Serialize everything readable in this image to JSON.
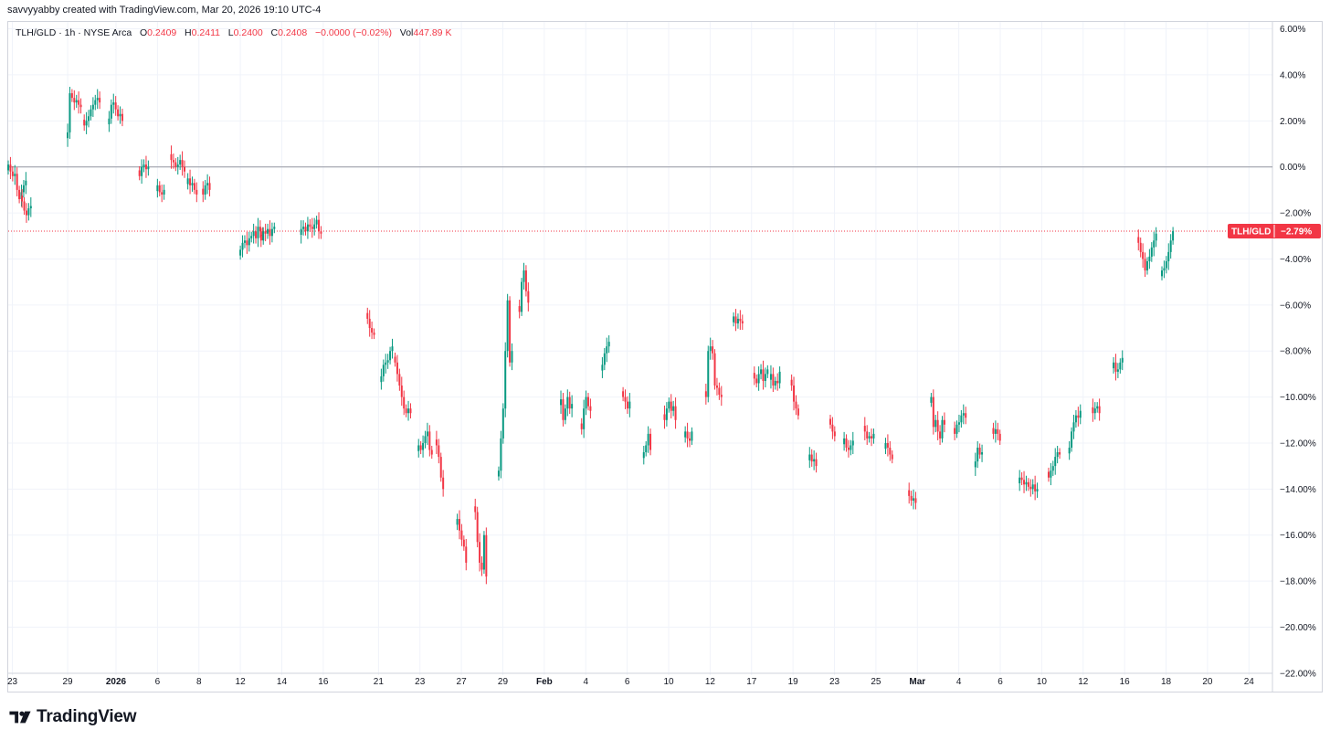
{
  "header": {
    "created": "savvyyabby created with TradingView.com, Mar 20, 2026 19:10 UTC-4"
  },
  "legend": {
    "symbol": "TLH/GLD · 1h · NYSE Arca",
    "open_label": "O",
    "open": "0.2409",
    "high_label": "H",
    "high": "0.2411",
    "low_label": "L",
    "low": "0.2400",
    "close_label": "C",
    "close": "0.2408",
    "change": "−0.0000 (−0.02%)",
    "vol_label": "Vol",
    "vol": "447.89 K"
  },
  "price_tag": {
    "symbol": "TLH/GLD",
    "value": "−2.79%"
  },
  "footer": {
    "brand": "TradingView"
  },
  "colors": {
    "up": "#089981",
    "down": "#f23645",
    "grid": "#f0f3fa",
    "zero_line": "#9598a1",
    "price_line": "#f23645"
  },
  "chart_data": {
    "type": "candlestick",
    "title": "TLH/GLD · 1h · NYSE Arca",
    "y_axis": {
      "unit": "percent",
      "range": [
        -22.8,
        6.3
      ],
      "ticks": [
        "6.00%",
        "4.00%",
        "2.00%",
        "0.00%",
        "−2.00%",
        "−4.00%",
        "−6.00%",
        "−8.00%",
        "−10.00%",
        "−12.00%",
        "−14.00%",
        "−16.00%",
        "−18.00%",
        "−20.00%",
        "−22.00%"
      ],
      "tick_values": [
        6,
        4,
        2,
        0,
        -2,
        -4,
        -6,
        -8,
        -10,
        -12,
        -14,
        -16,
        -18,
        -20,
        -22
      ]
    },
    "x_axis": {
      "labels": [
        "23",
        "29",
        "2026",
        "6",
        "8",
        "12",
        "14",
        "16",
        "21",
        "23",
        "27",
        "29",
        "Feb",
        "4",
        "6",
        "10",
        "12",
        "17",
        "19",
        "23",
        "25",
        "Mar",
        "4",
        "6",
        "10",
        "12",
        "16",
        "18",
        "20",
        "24"
      ],
      "label_index": [
        0.3,
        4.3,
        7.8,
        10.8,
        13.8,
        16.8,
        19.8,
        22.8,
        26.8,
        29.8,
        32.8,
        35.8,
        38.8,
        41.8,
        44.8,
        47.8,
        50.8,
        53.8,
        56.8,
        59.8,
        62.8,
        65.8,
        68.8,
        71.8,
        74.8,
        77.8,
        80.8,
        83.8,
        86.8,
        89.8
      ]
    },
    "reference_lines": [
      {
        "value": 0.0,
        "style": "solid"
      },
      {
        "value": -2.79,
        "style": "dotted"
      }
    ],
    "last_value": -2.79,
    "sessions": [
      {
        "start": 0.0,
        "values": [
          0.1,
          -0.2,
          -0.4,
          -0.3,
          -1.0,
          -1.4,
          -1.1,
          -0.8,
          -0.6
        ]
      },
      {
        "start": 1.0,
        "values": [
          -1.5,
          -1.9,
          -2.1,
          -1.8,
          -1.7
        ]
      },
      {
        "start": 4.3,
        "values": [
          1.5,
          3.2,
          3.0,
          2.8,
          2.9,
          2.7,
          2.6
        ]
      },
      {
        "start": 5.5,
        "values": [
          1.8,
          2.0,
          2.2,
          2.5,
          2.7,
          2.9,
          3.0,
          2.8
        ]
      },
      {
        "start": 7.3,
        "values": [
          2.1,
          2.7,
          2.8,
          2.5,
          2.2,
          2.3,
          2.0
        ]
      },
      {
        "start": 9.5,
        "values": [
          -0.4,
          0.0,
          0.1,
          -0.1,
          0.0
        ]
      },
      {
        "start": 10.8,
        "values": [
          -0.8,
          -1.1,
          -1.2,
          -1.0
        ]
      },
      {
        "start": 11.8,
        "values": [
          0.3,
          0.2,
          0.0,
          0.1,
          0.3,
          0.0,
          -0.2
        ]
      },
      {
        "start": 13.0,
        "values": [
          -0.5,
          -0.8,
          -0.7,
          -1.0,
          -1.2
        ]
      },
      {
        "start": 14.1,
        "values": [
          -1.2,
          -0.8,
          -0.7,
          -1.0
        ]
      },
      {
        "start": 16.8,
        "values": [
          -3.6,
          -3.3,
          -3.2,
          -3.4,
          -3.1,
          -3.0,
          -2.8,
          -3.1,
          -2.6,
          -2.8,
          -3.0
        ]
      },
      {
        "start": 18.3,
        "values": [
          -3.2,
          -2.8,
          -2.9,
          -2.7,
          -3.0,
          -2.7,
          -2.6
        ]
      },
      {
        "start": 21.2,
        "values": [
          -2.7,
          -2.6,
          -2.8,
          -2.5,
          -2.6,
          -2.7,
          -2.5,
          -2.3,
          -2.8,
          -2.9
        ]
      },
      {
        "start": 26.0,
        "values": [
          -6.6,
          -7.0,
          -7.2,
          -7.3
        ]
      },
      {
        "start": 27.0,
        "values": [
          -9.1,
          -8.6,
          -8.5,
          -8.4,
          -8.0,
          -7.8
        ]
      },
      {
        "start": 28.0,
        "values": [
          -8.5,
          -9.0,
          -9.5,
          -10.0,
          -10.5,
          -10.7,
          -10.5,
          -10.7
        ]
      },
      {
        "start": 29.7,
        "values": [
          -12.1,
          -12.3,
          -12.0,
          -11.7,
          -11.5,
          -12.3,
          -12.5
        ]
      },
      {
        "start": 31.0,
        "values": [
          -12.1,
          -12.6,
          -13.5,
          -14.0
        ]
      },
      {
        "start": 32.5,
        "values": [
          -15.3,
          -15.8,
          -16.2,
          -16.5,
          -17.2
        ]
      },
      {
        "start": 33.8,
        "values": [
          -15.0,
          -16.3,
          -17.2,
          -17.5,
          -16.0,
          -17.8
        ]
      },
      {
        "start": 35.5,
        "values": [
          -13.2,
          -11.8,
          -10.5,
          -8.0,
          -5.8,
          -8.5,
          -8.0
        ]
      },
      {
        "start": 37.0,
        "values": [
          -6.3,
          -5.0,
          -4.5,
          -5.4,
          -5.9
        ]
      },
      {
        "start": 40.0,
        "values": [
          -10.1,
          -11.0,
          -10.5,
          -10.0,
          -10.5,
          -10.3
        ]
      },
      {
        "start": 41.5,
        "values": [
          -11.4,
          -10.5,
          -10.0,
          -10.4,
          -10.6
        ]
      },
      {
        "start": 43.0,
        "values": [
          -8.6,
          -8.1,
          -7.8,
          -7.6
        ]
      },
      {
        "start": 44.5,
        "values": [
          -10.0,
          -10.2,
          -10.5,
          -10.2
        ]
      },
      {
        "start": 46.0,
        "values": [
          -12.4,
          -12.1,
          -11.6,
          -12.3
        ]
      },
      {
        "start": 47.5,
        "values": [
          -11.0,
          -10.5,
          -10.2,
          -10.6,
          -10.4,
          -11.0
        ]
      },
      {
        "start": 49.0,
        "values": [
          -11.5,
          -11.8,
          -11.9,
          -11.5
        ]
      },
      {
        "start": 50.5,
        "values": [
          -10.0,
          -8.0,
          -7.8,
          -8.1,
          -9.5,
          -9.6,
          -9.9,
          -10.0
        ]
      },
      {
        "start": 52.5,
        "values": [
          -6.5,
          -6.8,
          -6.6,
          -6.7,
          -6.8
        ]
      },
      {
        "start": 54.0,
        "values": [
          -9.2,
          -9.4,
          -9.0,
          -8.8,
          -9.3,
          -9.0,
          -8.8
        ]
      },
      {
        "start": 55.2,
        "values": [
          -9.0,
          -9.5,
          -9.3,
          -9.4,
          -8.9
        ]
      },
      {
        "start": 56.7,
        "values": [
          -9.5,
          -10.2,
          -10.5,
          -10.8
        ]
      },
      {
        "start": 58.0,
        "values": [
          -12.5,
          -12.8,
          -12.7,
          -13.0
        ]
      },
      {
        "start": 59.5,
        "values": [
          -11.2,
          -11.5,
          -11.7
        ]
      },
      {
        "start": 60.5,
        "values": [
          -11.8,
          -12.2,
          -12.3,
          -12.1,
          -11.9
        ]
      },
      {
        "start": 62.0,
        "values": [
          -11.5,
          -11.8,
          -11.7,
          -11.8,
          -11.6
        ]
      },
      {
        "start": 63.5,
        "values": [
          -12.0,
          -12.2,
          -12.5,
          -12.7
        ]
      },
      {
        "start": 65.2,
        "values": [
          -14.3,
          -14.5,
          -14.4,
          -14.6
        ]
      },
      {
        "start": 66.8,
        "values": [
          -10.0,
          -11.3,
          -11.0,
          -11.5,
          -11.8,
          -11.0,
          -11.2
        ]
      },
      {
        "start": 68.5,
        "values": [
          -11.6,
          -11.2,
          -11.1,
          -10.8,
          -10.7,
          -10.9
        ]
      },
      {
        "start": 70.0,
        "values": [
          -12.8,
          -12.2,
          -12.5,
          -12.4
        ]
      },
      {
        "start": 71.3,
        "values": [
          -11.6,
          -11.4,
          -11.6,
          -11.9
        ]
      },
      {
        "start": 73.2,
        "values": [
          -13.5,
          -13.6,
          -13.8,
          -13.7,
          -13.9,
          -14.0,
          -13.8,
          -14.1,
          -14.0
        ]
      },
      {
        "start": 75.3,
        "values": [
          -13.5,
          -13.2,
          -13.0,
          -12.6,
          -12.4,
          -12.5
        ]
      },
      {
        "start": 76.8,
        "values": [
          -12.2,
          -11.5,
          -11.1,
          -10.8,
          -10.9,
          -10.6
        ]
      },
      {
        "start": 78.5,
        "values": [
          -10.7,
          -10.5,
          -10.4,
          -10.7
        ]
      },
      {
        "start": 80.0,
        "values": [
          -8.5,
          -8.9,
          -8.8,
          -8.5,
          -8.3
        ]
      },
      {
        "start": 81.8,
        "values": [
          -3.3,
          -3.7,
          -4.0,
          -4.5,
          -4.1,
          -3.9,
          -3.5,
          -3.2,
          -2.9
        ]
      },
      {
        "start": 83.5,
        "values": [
          -4.5,
          -4.4,
          -4.1,
          -3.7,
          -3.2,
          -2.79
        ]
      }
    ]
  }
}
